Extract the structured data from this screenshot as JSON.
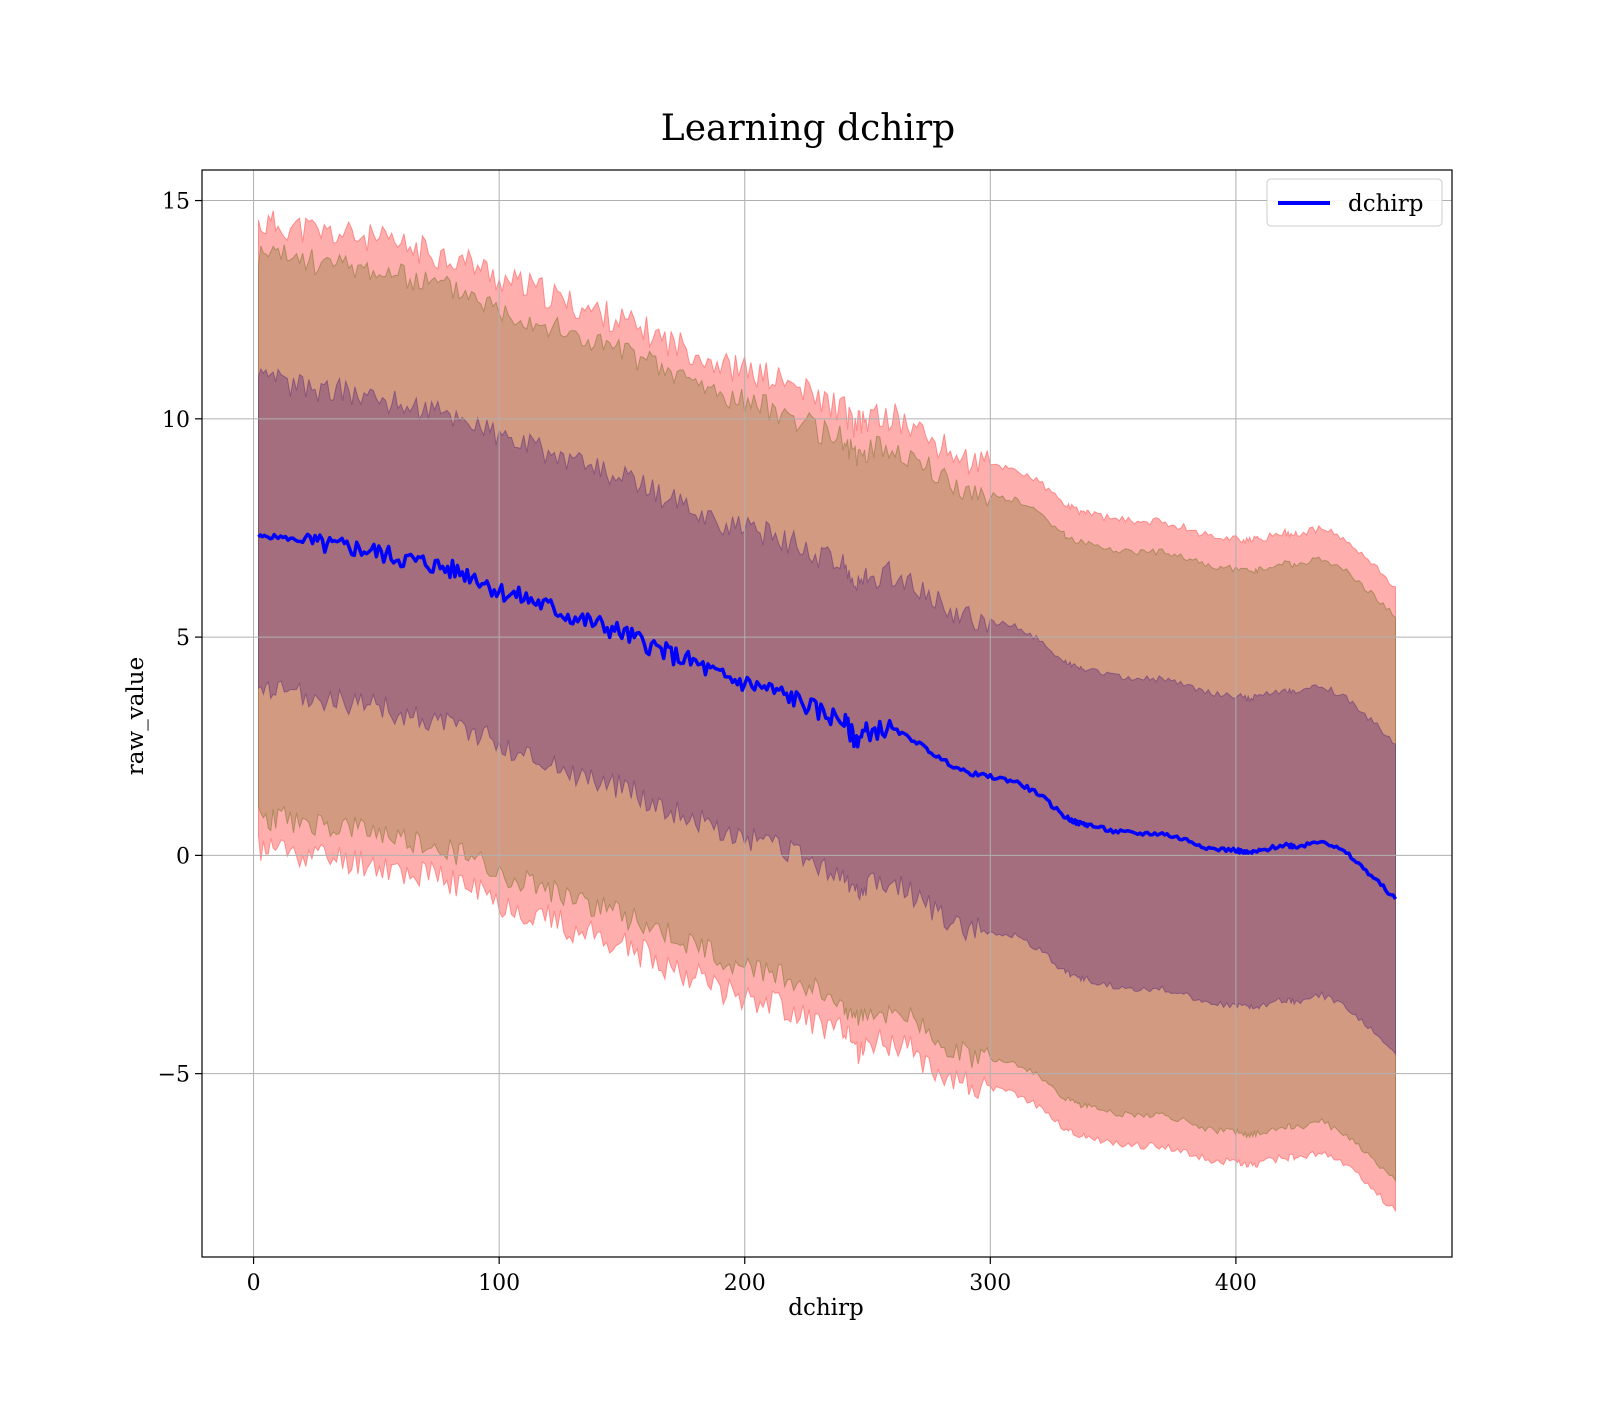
{
  "chart_data": {
    "type": "area",
    "title": "Learning dchirp",
    "xlabel": "dchirp",
    "ylabel": "raw_value",
    "xlim": [
      -21,
      488
    ],
    "ylim": [
      -9.2,
      15.7
    ],
    "x_ticks": [
      0,
      100,
      200,
      300,
      400
    ],
    "x_tick_labels": [
      "0",
      "100",
      "200",
      "300",
      "400"
    ],
    "y_ticks": [
      -5,
      0,
      5,
      10,
      15
    ],
    "y_tick_labels": [
      "−5",
      "0",
      "5",
      "10",
      "15"
    ],
    "grid": true,
    "legend": {
      "position": "top-right",
      "entries": [
        "dchirp"
      ]
    },
    "colors": {
      "line": "#0000ff",
      "band_outer": "#ff6b6b",
      "band_middle": "#8b7a3a",
      "band_inner": "#6b3a7a",
      "grid": "#b0b0b0"
    },
    "series": [
      {
        "name": "dchirp",
        "x": [
          2,
          10,
          20,
          30,
          40,
          50,
          60,
          70,
          80,
          90,
          100,
          110,
          120,
          130,
          140,
          150,
          160,
          170,
          180,
          190,
          200,
          210,
          220,
          230,
          240,
          245,
          250,
          260,
          270,
          280,
          290,
          300,
          310,
          320,
          330,
          335,
          340,
          350,
          360,
          370,
          380,
          390,
          400,
          405,
          410,
          420,
          425,
          435,
          445,
          455,
          465
        ],
        "mean": [
          7.3,
          7.3,
          7.2,
          7.1,
          7.05,
          6.95,
          6.8,
          6.7,
          6.55,
          6.4,
          6.05,
          5.9,
          5.7,
          5.45,
          5.3,
          5.1,
          4.85,
          4.6,
          4.4,
          4.1,
          3.95,
          3.8,
          3.6,
          3.3,
          3.1,
          2.65,
          2.85,
          2.9,
          2.6,
          2.2,
          1.9,
          1.8,
          1.7,
          1.4,
          0.9,
          0.75,
          0.7,
          0.55,
          0.5,
          0.5,
          0.35,
          0.15,
          0.12,
          0.05,
          0.1,
          0.25,
          0.2,
          0.35,
          0.05,
          -0.45,
          -1.0
        ]
      }
    ],
    "bands": {
      "inner_offset": 3.55,
      "middle_offset": 6.45,
      "outer_offset": 7.15
    }
  }
}
